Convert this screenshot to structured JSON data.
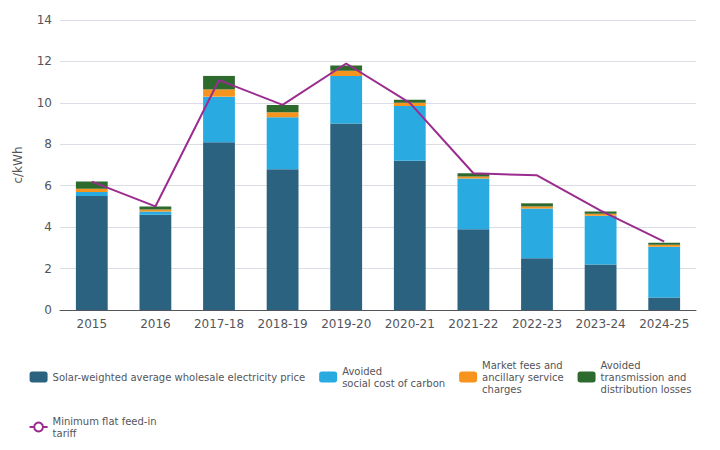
{
  "chart_data": {
    "type": "bar",
    "ylabel": "c/kWh",
    "categories": [
      "2015",
      "2016",
      "2017-18",
      "2018-19",
      "2019-20",
      "2020-21",
      "2021-22",
      "2022-23",
      "2023-24",
      "2024-25"
    ],
    "series": [
      {
        "name": "Solar-weighted average wholesale electricity price",
        "type": "bar",
        "color": "#2B6280",
        "values": [
          5.5,
          4.6,
          8.1,
          6.8,
          9.0,
          7.2,
          3.9,
          2.5,
          2.2,
          0.6
        ]
      },
      {
        "name": "Avoided\nsocial cost of carbon",
        "type": "bar",
        "color": "#29ABE2",
        "values": [
          0.2,
          0.15,
          2.2,
          2.5,
          2.3,
          2.65,
          2.45,
          2.4,
          2.35,
          2.45
        ]
      },
      {
        "name": "Market fees and\nancillary service\ncharges",
        "type": "bar",
        "color": "#F7941D",
        "values": [
          0.15,
          0.1,
          0.35,
          0.25,
          0.25,
          0.15,
          0.1,
          0.1,
          0.1,
          0.1
        ]
      },
      {
        "name": "Avoided\ntransmission and\ndistribution losses",
        "type": "bar",
        "color": "#2D6A2D",
        "values": [
          0.35,
          0.15,
          0.65,
          0.35,
          0.25,
          0.15,
          0.15,
          0.15,
          0.1,
          0.1
        ]
      },
      {
        "name": "Minimum flat feed-in\ntariff",
        "type": "line",
        "color": "#9B2C8F",
        "values": [
          6.2,
          5.0,
          11.1,
          9.9,
          11.9,
          10.0,
          6.6,
          6.5,
          4.8,
          3.3
        ]
      }
    ],
    "stacked": true,
    "ylim": [
      0,
      14
    ],
    "yticks": [
      0,
      2,
      4,
      6,
      8,
      10,
      12,
      14
    ],
    "grid": true,
    "legend": "bottom"
  }
}
